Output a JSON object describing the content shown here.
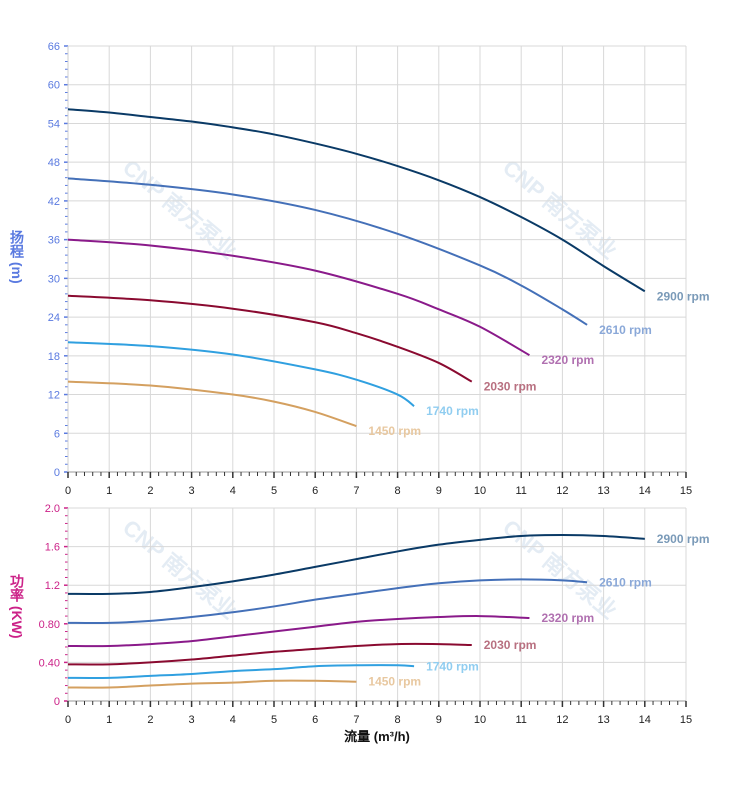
{
  "chart_data": [
    {
      "type": "line",
      "ylabel": "扬程 (m)",
      "xlim": [
        0,
        15
      ],
      "ylim": [
        0,
        66
      ],
      "xticks": [
        "0",
        "1",
        "2",
        "3",
        "4",
        "5",
        "6",
        "7",
        "8",
        "9",
        "10",
        "11",
        "12",
        "13",
        "14",
        "15"
      ],
      "yticks": [
        "0",
        "6",
        "12",
        "18",
        "24",
        "30",
        "36",
        "42",
        "48",
        "54",
        "60",
        "66"
      ],
      "grid": true,
      "axis_color": "#5a7ae0",
      "series": [
        {
          "name": "2900 rpm",
          "color": "#0a3a66",
          "label_color": "#7a9ab8",
          "x": [
            0,
            1,
            2,
            3,
            4,
            5,
            6,
            7,
            8,
            9,
            10,
            11,
            12,
            13,
            14
          ],
          "y": [
            56.2,
            55.7,
            55.0,
            54.3,
            53.4,
            52.3,
            50.9,
            49.3,
            47.4,
            45.2,
            42.6,
            39.5,
            36.0,
            31.9,
            28.0
          ]
        },
        {
          "name": "2610 rpm",
          "color": "#4470b8",
          "label_color": "#8aa8d8",
          "x": [
            0,
            2,
            4,
            6,
            8,
            10,
            11,
            12,
            12.6
          ],
          "y": [
            45.5,
            44.5,
            43.0,
            40.6,
            36.9,
            32.0,
            28.9,
            25.2,
            22.8
          ]
        },
        {
          "name": "2320 rpm",
          "color": "#8a1a8a",
          "label_color": "#b070b0",
          "x": [
            0,
            2,
            4,
            6,
            8,
            9,
            10,
            11.2
          ],
          "y": [
            36.0,
            35.1,
            33.5,
            31.2,
            27.6,
            25.2,
            22.5,
            18.1
          ]
        },
        {
          "name": "2030 rpm",
          "color": "#8a0a30",
          "label_color": "#b87080",
          "x": [
            0,
            2,
            4,
            6,
            7,
            8,
            9,
            9.8
          ],
          "y": [
            27.3,
            26.6,
            25.3,
            23.2,
            21.5,
            19.4,
            16.9,
            14.0
          ]
        },
        {
          "name": "1740 rpm",
          "color": "#30a0e0",
          "label_color": "#90cdf0",
          "x": [
            0,
            2,
            4,
            6,
            7,
            8,
            8.4
          ],
          "y": [
            20.1,
            19.5,
            18.2,
            15.9,
            14.3,
            12.0,
            10.2
          ]
        },
        {
          "name": "1450 rpm",
          "color": "#d4a060",
          "label_color": "#e8c8a0",
          "x": [
            0,
            2,
            4,
            5,
            6,
            7
          ],
          "y": [
            14.0,
            13.4,
            12.0,
            10.9,
            9.3,
            7.1
          ]
        }
      ]
    },
    {
      "type": "line",
      "xlabel": "流量 (m³/h)",
      "ylabel": "功率 (KW)",
      "xlim": [
        0,
        15
      ],
      "ylim": [
        0,
        2.0
      ],
      "xticks": [
        "0",
        "1",
        "2",
        "3",
        "4",
        "5",
        "6",
        "7",
        "8",
        "9",
        "10",
        "11",
        "12",
        "13",
        "14",
        "15"
      ],
      "yticks": [
        "0",
        "0.40",
        "0.80",
        "1.2",
        "1.6",
        "2.0"
      ],
      "grid": true,
      "axis_color": "#cc2288",
      "series": [
        {
          "name": "2900 rpm",
          "color": "#0a3a66",
          "label_color": "#7a9ab8",
          "x": [
            0,
            1,
            2,
            3,
            4,
            5,
            6,
            7,
            8,
            9,
            10,
            11,
            12,
            13,
            14
          ],
          "y": [
            1.11,
            1.11,
            1.13,
            1.18,
            1.24,
            1.31,
            1.39,
            1.47,
            1.55,
            1.62,
            1.67,
            1.71,
            1.72,
            1.71,
            1.68
          ]
        },
        {
          "name": "2610 rpm",
          "color": "#4470b8",
          "label_color": "#8aa8d8",
          "x": [
            0,
            1,
            2,
            3,
            4,
            5,
            6,
            7,
            8,
            9,
            10,
            11,
            12,
            12.6
          ],
          "y": [
            0.81,
            0.81,
            0.83,
            0.87,
            0.92,
            0.98,
            1.05,
            1.11,
            1.17,
            1.22,
            1.25,
            1.26,
            1.25,
            1.23
          ]
        },
        {
          "name": "2320 rpm",
          "color": "#8a1a8a",
          "label_color": "#b070b0",
          "x": [
            0,
            1,
            2,
            3,
            4,
            5,
            6,
            7,
            8,
            9,
            10,
            11.2
          ],
          "y": [
            0.57,
            0.57,
            0.59,
            0.62,
            0.67,
            0.72,
            0.77,
            0.82,
            0.85,
            0.87,
            0.88,
            0.86
          ]
        },
        {
          "name": "2030 rpm",
          "color": "#8a0a30",
          "label_color": "#b87080",
          "x": [
            0,
            1,
            2,
            3,
            4,
            5,
            6,
            7,
            8,
            9,
            9.8
          ],
          "y": [
            0.38,
            0.38,
            0.4,
            0.43,
            0.47,
            0.51,
            0.54,
            0.57,
            0.59,
            0.59,
            0.58
          ]
        },
        {
          "name": "1740 rpm",
          "color": "#30a0e0",
          "label_color": "#90cdf0",
          "x": [
            0,
            1,
            2,
            3,
            4,
            5,
            6,
            7,
            8,
            8.4
          ],
          "y": [
            0.24,
            0.24,
            0.26,
            0.28,
            0.31,
            0.33,
            0.36,
            0.37,
            0.37,
            0.36
          ]
        },
        {
          "name": "1450 rpm",
          "color": "#d4a060",
          "label_color": "#e8c8a0",
          "x": [
            0,
            1,
            2,
            3,
            4,
            5,
            6,
            7
          ],
          "y": [
            0.14,
            0.14,
            0.16,
            0.18,
            0.19,
            0.21,
            0.21,
            0.2
          ]
        }
      ]
    }
  ],
  "watermark": "CNP 南方泵业"
}
